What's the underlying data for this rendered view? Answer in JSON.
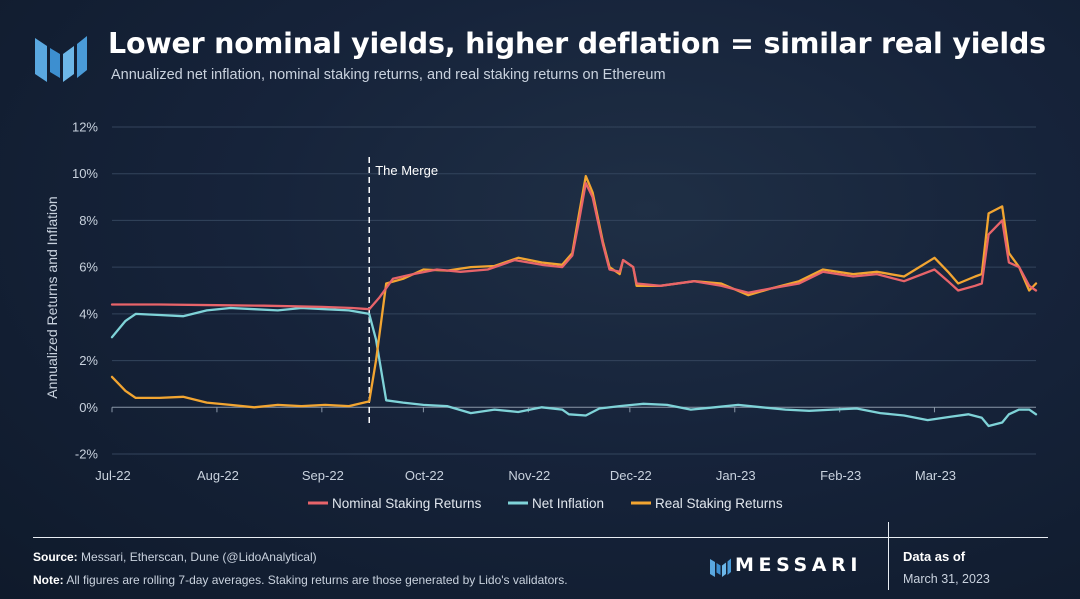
{
  "header": {
    "title": "Lower nominal yields, higher deflation = similar real yields",
    "subtitle": "Annualized net inflation, nominal staking returns, and real staking returns on Ethereum"
  },
  "footer": {
    "source_label": "Source:",
    "source_text": "Messari, Etherscan, Dune (@LidoAnalytical)",
    "note_label": "Note:",
    "note_text": "All figures are rolling 7-day averages. Staking returns are those generated by Lido's validators.",
    "brand": "MESSARI",
    "data_as_of_label": "Data as of",
    "data_as_of_date": "March 31, 2023"
  },
  "colors": {
    "nominal": "#e8646a",
    "inflation": "#7fd3d8",
    "real": "#f2a531",
    "brand_blue": "#5aa8e0"
  },
  "chart_data": {
    "type": "line",
    "title": "Lower nominal yields, higher deflation = similar real yields",
    "subtitle": "Annualized net inflation, nominal staking returns, and real staking returns on Ethereum",
    "xlabel": "",
    "ylabel": "Annualized Returns and Inflation",
    "x_ticks": [
      "Jul-22",
      "Aug-22",
      "Sep-22",
      "Oct-22",
      "Nov-22",
      "Dec-22",
      "Jan-23",
      "Feb-23",
      "Mar-23"
    ],
    "y_ticks": [
      "-2%",
      "0%",
      "2%",
      "4%",
      "6%",
      "8%",
      "10%",
      "12%"
    ],
    "ylim": [
      -2,
      12
    ],
    "y_unit": "%",
    "xlim": [
      "2022-07-01",
      "2023-03-31"
    ],
    "grid": true,
    "legend_position": "bottom-center",
    "annotations": [
      {
        "label": "The Merge",
        "x": "2022-09-15",
        "style": "dashed vertical line"
      }
    ],
    "series": [
      {
        "name": "Nominal Staking Returns",
        "color": "#e8646a",
        "points": [
          [
            "2022-07-01",
            4.4
          ],
          [
            "2022-07-15",
            4.4
          ],
          [
            "2022-08-01",
            4.37
          ],
          [
            "2022-08-15",
            4.35
          ],
          [
            "2022-09-01",
            4.3
          ],
          [
            "2022-09-10",
            4.25
          ],
          [
            "2022-09-15",
            4.2
          ],
          [
            "2022-09-18",
            4.7
          ],
          [
            "2022-09-22",
            5.5
          ],
          [
            "2022-09-28",
            5.7
          ],
          [
            "2022-10-05",
            5.9
          ],
          [
            "2022-10-12",
            5.8
          ],
          [
            "2022-10-20",
            5.9
          ],
          [
            "2022-10-28",
            6.3
          ],
          [
            "2022-11-05",
            6.1
          ],
          [
            "2022-11-11",
            6.0
          ],
          [
            "2022-11-14",
            6.5
          ],
          [
            "2022-11-16",
            8.0
          ],
          [
            "2022-11-18",
            9.6
          ],
          [
            "2022-11-20",
            9.0
          ],
          [
            "2022-11-23",
            7.0
          ],
          [
            "2022-11-25",
            5.9
          ],
          [
            "2022-11-28",
            5.8
          ],
          [
            "2022-11-29",
            6.3
          ],
          [
            "2022-12-02",
            6.0
          ],
          [
            "2022-12-03",
            5.3
          ],
          [
            "2022-12-10",
            5.2
          ],
          [
            "2022-12-20",
            5.4
          ],
          [
            "2022-12-28",
            5.2
          ],
          [
            "2023-01-05",
            4.9
          ],
          [
            "2023-01-12",
            5.1
          ],
          [
            "2023-01-20",
            5.3
          ],
          [
            "2023-01-27",
            5.8
          ],
          [
            "2023-02-05",
            5.6
          ],
          [
            "2023-02-12",
            5.7
          ],
          [
            "2023-02-20",
            5.4
          ],
          [
            "2023-03-01",
            5.9
          ],
          [
            "2023-03-05",
            5.4
          ],
          [
            "2023-03-08",
            5.0
          ],
          [
            "2023-03-13",
            5.2
          ],
          [
            "2023-03-15",
            5.3
          ],
          [
            "2023-03-17",
            7.4
          ],
          [
            "2023-03-21",
            8.0
          ],
          [
            "2023-03-23",
            6.2
          ],
          [
            "2023-03-26",
            6.0
          ],
          [
            "2023-03-29",
            5.2
          ],
          [
            "2023-03-31",
            5.0
          ]
        ]
      },
      {
        "name": "Net Inflation",
        "color": "#7fd3d8",
        "points": [
          [
            "2022-07-01",
            3.0
          ],
          [
            "2022-07-05",
            3.7
          ],
          [
            "2022-07-08",
            4.0
          ],
          [
            "2022-07-15",
            3.95
          ],
          [
            "2022-07-22",
            3.9
          ],
          [
            "2022-07-29",
            4.15
          ],
          [
            "2022-08-05",
            4.25
          ],
          [
            "2022-08-12",
            4.2
          ],
          [
            "2022-08-19",
            4.15
          ],
          [
            "2022-08-26",
            4.25
          ],
          [
            "2022-09-02",
            4.2
          ],
          [
            "2022-09-09",
            4.15
          ],
          [
            "2022-09-15",
            4.0
          ],
          [
            "2022-09-17",
            2.9
          ],
          [
            "2022-09-20",
            0.3
          ],
          [
            "2022-09-25",
            0.2
          ],
          [
            "2022-10-01",
            0.1
          ],
          [
            "2022-10-08",
            0.05
          ],
          [
            "2022-10-15",
            -0.25
          ],
          [
            "2022-10-22",
            -0.1
          ],
          [
            "2022-10-29",
            -0.2
          ],
          [
            "2022-11-05",
            0.0
          ],
          [
            "2022-11-11",
            -0.1
          ],
          [
            "2022-11-13",
            -0.3
          ],
          [
            "2022-11-18",
            -0.35
          ],
          [
            "2022-11-22",
            -0.05
          ],
          [
            "2022-11-28",
            0.05
          ],
          [
            "2022-12-05",
            0.15
          ],
          [
            "2022-12-12",
            0.1
          ],
          [
            "2022-12-19",
            -0.1
          ],
          [
            "2022-12-26",
            0.0
          ],
          [
            "2023-01-02",
            0.1
          ],
          [
            "2023-01-09",
            0.0
          ],
          [
            "2023-01-16",
            -0.1
          ],
          [
            "2023-01-23",
            -0.15
          ],
          [
            "2023-01-30",
            -0.1
          ],
          [
            "2023-02-06",
            -0.05
          ],
          [
            "2023-02-13",
            -0.25
          ],
          [
            "2023-02-20",
            -0.35
          ],
          [
            "2023-02-27",
            -0.55
          ],
          [
            "2023-03-06",
            -0.4
          ],
          [
            "2023-03-11",
            -0.3
          ],
          [
            "2023-03-15",
            -0.45
          ],
          [
            "2023-03-17",
            -0.8
          ],
          [
            "2023-03-21",
            -0.65
          ],
          [
            "2023-03-23",
            -0.3
          ],
          [
            "2023-03-26",
            -0.1
          ],
          [
            "2023-03-29",
            -0.1
          ],
          [
            "2023-03-31",
            -0.3
          ]
        ]
      },
      {
        "name": "Real Staking Returns",
        "color": "#f2a531",
        "points": [
          [
            "2022-07-01",
            1.3
          ],
          [
            "2022-07-05",
            0.7
          ],
          [
            "2022-07-08",
            0.4
          ],
          [
            "2022-07-15",
            0.4
          ],
          [
            "2022-07-22",
            0.45
          ],
          [
            "2022-07-29",
            0.2
          ],
          [
            "2022-08-05",
            0.1
          ],
          [
            "2022-08-12",
            0.0
          ],
          [
            "2022-08-19",
            0.1
          ],
          [
            "2022-08-26",
            0.05
          ],
          [
            "2022-09-02",
            0.1
          ],
          [
            "2022-09-09",
            0.05
          ],
          [
            "2022-09-15",
            0.25
          ],
          [
            "2022-09-17",
            2.0
          ],
          [
            "2022-09-20",
            5.3
          ],
          [
            "2022-09-25",
            5.5
          ],
          [
            "2022-10-01",
            5.9
          ],
          [
            "2022-10-08",
            5.85
          ],
          [
            "2022-10-15",
            6.0
          ],
          [
            "2022-10-22",
            6.05
          ],
          [
            "2022-10-29",
            6.4
          ],
          [
            "2022-11-05",
            6.2
          ],
          [
            "2022-11-11",
            6.1
          ],
          [
            "2022-11-14",
            6.6
          ],
          [
            "2022-11-16",
            8.3
          ],
          [
            "2022-11-18",
            9.9
          ],
          [
            "2022-11-20",
            9.2
          ],
          [
            "2022-11-23",
            7.1
          ],
          [
            "2022-11-25",
            6.0
          ],
          [
            "2022-11-28",
            5.7
          ],
          [
            "2022-11-29",
            6.3
          ],
          [
            "2022-12-02",
            6.0
          ],
          [
            "2022-12-03",
            5.2
          ],
          [
            "2022-12-10",
            5.2
          ],
          [
            "2022-12-20",
            5.4
          ],
          [
            "2022-12-28",
            5.3
          ],
          [
            "2023-01-05",
            4.8
          ],
          [
            "2023-01-12",
            5.1
          ],
          [
            "2023-01-20",
            5.4
          ],
          [
            "2023-01-27",
            5.9
          ],
          [
            "2023-02-05",
            5.7
          ],
          [
            "2023-02-12",
            5.8
          ],
          [
            "2023-02-20",
            5.6
          ],
          [
            "2023-03-01",
            6.4
          ],
          [
            "2023-03-05",
            5.8
          ],
          [
            "2023-03-08",
            5.3
          ],
          [
            "2023-03-13",
            5.6
          ],
          [
            "2023-03-15",
            5.7
          ],
          [
            "2023-03-17",
            8.3
          ],
          [
            "2023-03-21",
            8.6
          ],
          [
            "2023-03-23",
            6.6
          ],
          [
            "2023-03-26",
            6.0
          ],
          [
            "2023-03-29",
            5.0
          ],
          [
            "2023-03-31",
            5.3
          ]
        ]
      }
    ]
  }
}
